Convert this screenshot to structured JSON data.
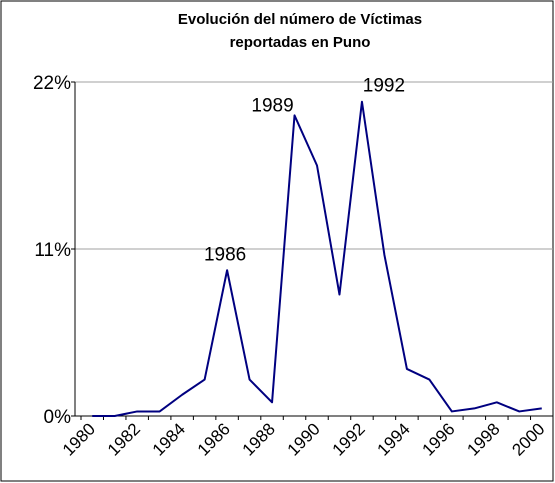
{
  "chart_data": {
    "type": "line",
    "title": [
      "Evolución del número de Víctimas",
      "reportadas en Puno"
    ],
    "categories": [
      "1980",
      null,
      "1982",
      null,
      "1984",
      null,
      "1986",
      null,
      "1988",
      null,
      "1990",
      null,
      "1992",
      null,
      "1994",
      null,
      "1996",
      null,
      "1998",
      null,
      "2000"
    ],
    "series": [
      {
        "name": "Víctimas",
        "color": "#000080",
        "values": [
          0,
          0,
          0.3,
          0.3,
          1.4,
          2.4,
          9.6,
          2.4,
          0.9,
          19.8,
          16.5,
          8.0,
          20.7,
          10.6,
          3.1,
          2.4,
          0.3,
          0.5,
          0.9,
          0.3,
          0.5
        ]
      }
    ],
    "annotations": [
      "1986",
      "1989",
      "1992"
    ],
    "ylim": [
      0,
      22
    ],
    "yticks": [
      {
        "value": 0,
        "label": "0%"
      },
      {
        "value": 11,
        "label": "11%"
      },
      {
        "value": 22,
        "label": "22%"
      }
    ],
    "grid": true
  }
}
